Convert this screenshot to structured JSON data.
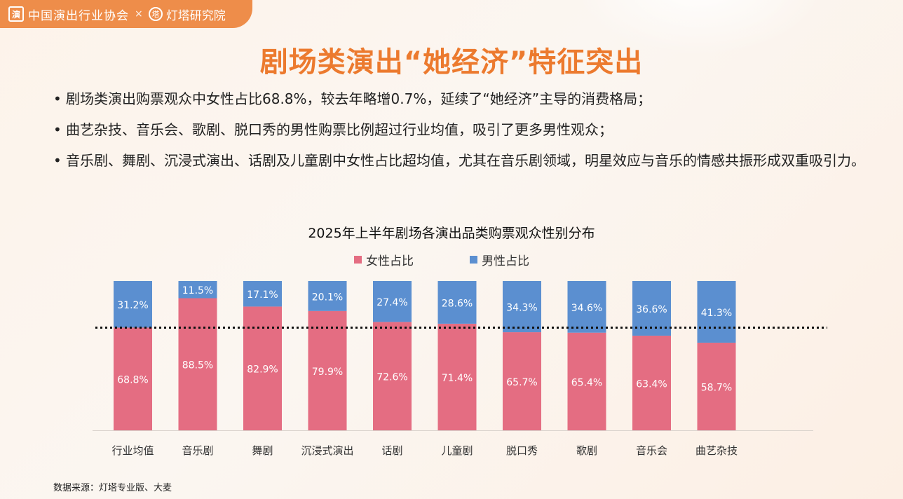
{
  "header": {
    "org1": "中国演出行业协会",
    "separator": "×",
    "org2": "灯塔研究院",
    "logo_icon": "association-logo-icon",
    "logo2_icon": "lighthouse-logo-icon"
  },
  "title": "剧场类演出“她经济”特征突出",
  "bullets": [
    "剧场类演出购票观众中女性占比68.8%，较去年略增0.7%，延续了“她经济”主导的消费格局；",
    "曲艺杂技、音乐会、歌剧、脱口秀的男性购票比例超过行业均值，吸引了更多男性观众；",
    "音乐剧、舞剧、沉浸式演出、话剧及儿童剧中女性占比超均值，尤其在音乐剧领域，明星效应与音乐的情感共振形成双重吸引力。"
  ],
  "chart_data": {
    "type": "bar",
    "stacked": true,
    "title": "2025年上半年剧场各演出品类购票观众性别分布",
    "categories": [
      "行业均值",
      "音乐剧",
      "舞剧",
      "沉浸式演出",
      "话剧",
      "儿童剧",
      "脱口秀",
      "歌剧",
      "音乐会",
      "曲艺杂技"
    ],
    "series": [
      {
        "name": "女性占比",
        "color": "#e46d82",
        "values": [
          68.8,
          88.5,
          82.9,
          79.9,
          72.6,
          71.4,
          65.7,
          65.4,
          63.4,
          58.7
        ],
        "labels": [
          "68.8%",
          "88.5%",
          "82.9%",
          "79.9%",
          "72.6%",
          "71.4%",
          "65.7%",
          "65.4%",
          "63.4%",
          "58.7%"
        ]
      },
      {
        "name": "男性占比",
        "color": "#5b8fd0",
        "values": [
          31.2,
          11.5,
          17.1,
          20.1,
          27.4,
          28.6,
          34.3,
          34.6,
          36.6,
          41.3
        ],
        "labels": [
          "31.2%",
          "11.5%",
          "17.1%",
          "20.1%",
          "27.4%",
          "28.6%",
          "34.3%",
          "34.6%",
          "36.6%",
          "41.3%"
        ]
      }
    ],
    "reference_line": {
      "value": 68.8,
      "style": "dotted"
    },
    "ylim": [
      0,
      100
    ],
    "legend_position": "top",
    "grid": false
  },
  "source": "数据来源：灯塔专业版、大麦"
}
